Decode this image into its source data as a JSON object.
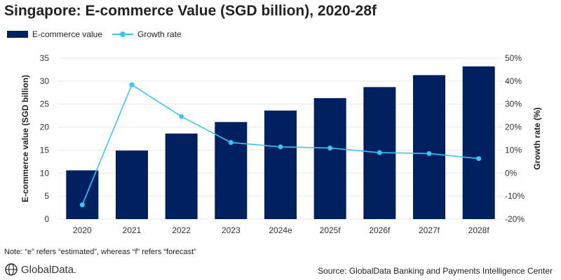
{
  "title": "Singapore: E-commerce Value (SGD billion), 2020-28f",
  "note": "Note: “e” refers “estimated”, whereas “f” refers “forecast”",
  "source": "Source: GlobalData Banking and Payments Intelligence Center",
  "logo": "GlobalData.",
  "colors": {
    "bar": "#002060",
    "line": "#3fc3f7"
  },
  "chart_data": {
    "type": "bar+line",
    "categories": [
      "2020",
      "2021",
      "2022",
      "2023",
      "2024e",
      "2025f",
      "2026f",
      "2027f",
      "2028f"
    ],
    "series": [
      {
        "name": "E-commerce value",
        "type": "bar",
        "axis": "left",
        "values": [
          10.6,
          14.9,
          18.6,
          21.1,
          23.6,
          26.3,
          28.7,
          31.3,
          33.2
        ]
      },
      {
        "name": "Growth rate",
        "type": "line",
        "axis": "right",
        "values": [
          -13.8,
          38.4,
          24.6,
          13.3,
          11.4,
          10.9,
          8.9,
          8.5,
          6.3
        ]
      }
    ],
    "ylabel": "E-commerce value (SGD billion)",
    "y2label": "Growth rate (%)",
    "ylim": [
      0,
      35
    ],
    "yticks": [
      "0",
      "5",
      "10",
      "15",
      "20",
      "25",
      "30",
      "35"
    ],
    "y2lim": [
      -20,
      50
    ],
    "y2ticks": [
      "-20%",
      "-10%",
      "0%",
      "10%",
      "20%",
      "30%",
      "40%",
      "50%"
    ],
    "grid": true,
    "legend": "top-left"
  }
}
